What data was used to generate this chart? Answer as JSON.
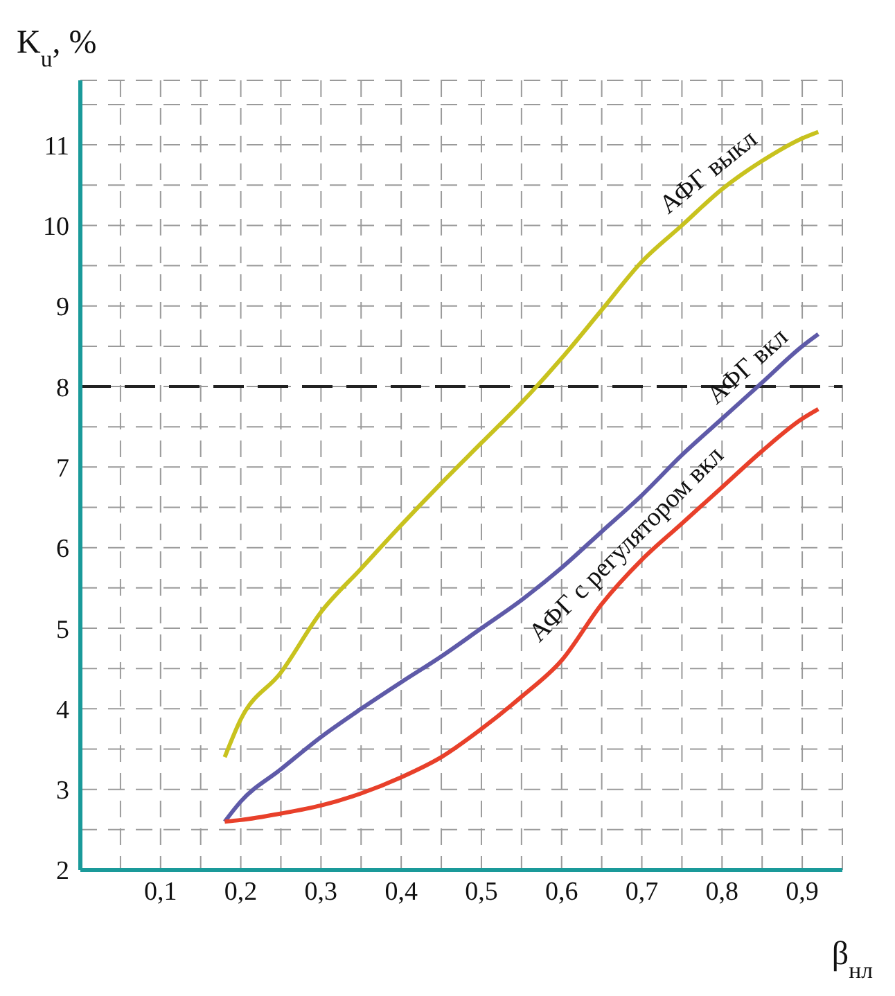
{
  "chart_data": {
    "type": "line",
    "xlabel": "β$_{нл}$",
    "ylabel": "K$_{u}$, %",
    "x": [
      0.18,
      0.2,
      0.25,
      0.3,
      0.35,
      0.4,
      0.45,
      0.5,
      0.55,
      0.6,
      0.65,
      0.7,
      0.75,
      0.8,
      0.85,
      0.9,
      0.92
    ],
    "series": [
      {
        "name": "АФГ выкл",
        "color": "#c8c21e",
        "values": [
          3.4,
          3.87,
          4.45,
          5.2,
          5.74,
          6.28,
          6.8,
          7.3,
          7.8,
          8.35,
          8.95,
          9.55,
          10.0,
          10.45,
          10.8,
          11.08,
          11.16
        ]
      },
      {
        "name": "АФГ вкл",
        "color": "#5e5aa8",
        "values": [
          2.6,
          2.85,
          3.25,
          3.65,
          4.0,
          4.33,
          4.65,
          5.0,
          5.35,
          5.75,
          6.2,
          6.65,
          7.15,
          7.6,
          8.05,
          8.5,
          8.65
        ]
      },
      {
        "name": "АФГ с регулятором вкл",
        "color": "#e8402a",
        "values": [
          2.6,
          2.62,
          2.7,
          2.8,
          2.95,
          3.15,
          3.4,
          3.75,
          4.15,
          4.6,
          5.3,
          5.85,
          6.3,
          6.75,
          7.2,
          7.6,
          7.72
        ]
      }
    ],
    "xlim": [
      0,
      0.95
    ],
    "xticks": [
      {
        "value": 0.05,
        "label": null
      },
      {
        "value": 0.1,
        "label": "0,1"
      },
      {
        "value": 0.15,
        "label": null
      },
      {
        "value": 0.2,
        "label": "0,2"
      },
      {
        "value": 0.25,
        "label": null
      },
      {
        "value": 0.3,
        "label": "0,3"
      },
      {
        "value": 0.35,
        "label": null
      },
      {
        "value": 0.4,
        "label": "0,4"
      },
      {
        "value": 0.45,
        "label": null
      },
      {
        "value": 0.5,
        "label": "0,5"
      },
      {
        "value": 0.55,
        "label": null
      },
      {
        "value": 0.6,
        "label": "0,6"
      },
      {
        "value": 0.65,
        "label": null
      },
      {
        "value": 0.7,
        "label": "0,7"
      },
      {
        "value": 0.75,
        "label": null
      },
      {
        "value": 0.8,
        "label": "0,8"
      },
      {
        "value": 0.85,
        "label": null
      },
      {
        "value": 0.9,
        "label": "0,9"
      }
    ],
    "ylim": [
      2,
      11.8
    ],
    "yticks": [
      2,
      {
        "value": 2.5,
        "label": null
      },
      3,
      {
        "value": 3.5,
        "label": null
      },
      4,
      {
        "value": 4.5,
        "label": null
      },
      5,
      {
        "value": 5.5,
        "label": null
      },
      6,
      {
        "value": 6.5,
        "label": null
      },
      7,
      {
        "value": 7.5,
        "label": null
      },
      8,
      {
        "value": 8.5,
        "label": null
      },
      9,
      {
        "value": 9.5,
        "label": null
      },
      10,
      {
        "value": 10.5,
        "label": null
      },
      11,
      {
        "value": 11.5,
        "label": null
      }
    ],
    "ref_lines": [
      {
        "axis": "y",
        "value": 8,
        "color": "#222222",
        "line_style": "dashed"
      }
    ],
    "grid": true,
    "marker": "none",
    "line_style": "solid"
  }
}
